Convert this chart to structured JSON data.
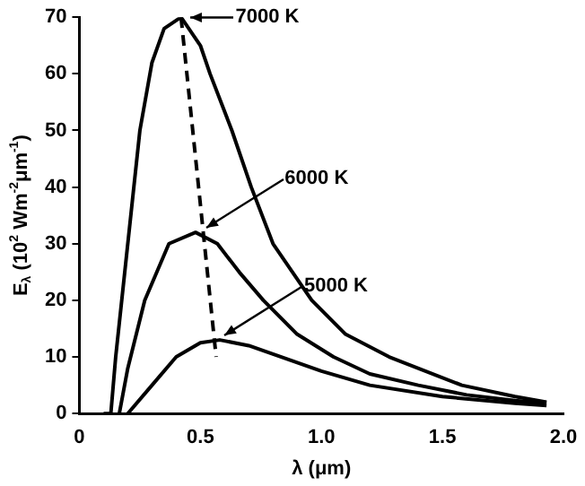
{
  "chart_data": {
    "type": "line",
    "xlabel": "λ (μm)",
    "ylabel": "E$_{λ}$ (10$^{2}$ Wm$^{-2}$μm$^{-1}$)",
    "series": [
      {
        "color": "#000000",
        "x": [
          0.1,
          0.13,
          0.15,
          0.2,
          0.25,
          0.3,
          0.35,
          0.42,
          0.5,
          0.54,
          0.63,
          0.71,
          0.8,
          0.96,
          1.1,
          1.28,
          1.58,
          1.8,
          1.93
        ],
        "values": [
          0,
          0,
          10,
          30,
          50,
          62,
          68,
          70,
          65,
          60,
          50,
          40,
          30,
          20,
          14,
          10,
          5,
          3,
          2
        ]
      },
      {
        "color": "#000000",
        "x": [
          0.165,
          0.2,
          0.27,
          0.37,
          0.48,
          0.57,
          0.66,
          0.76,
          0.9,
          1.05,
          1.2,
          1.4,
          1.6,
          1.8,
          1.93
        ],
        "values": [
          0,
          8,
          20,
          30,
          32,
          30,
          25,
          20,
          14,
          10,
          7,
          5,
          3.3,
          2.3,
          1.8
        ]
      },
      {
        "color": "#000000",
        "x": [
          0.2,
          0.3,
          0.4,
          0.5,
          0.58,
          0.7,
          0.8,
          1.0,
          1.2,
          1.5,
          1.8,
          1.93
        ],
        "values": [
          0,
          5,
          10,
          12.5,
          13,
          12,
          10.5,
          7.5,
          5,
          3,
          1.8,
          1.4
        ]
      },
      {
        "color": "#000000",
        "line_style": "dashed",
        "x": [
          0.42,
          0.565
        ],
        "values": [
          70,
          10
        ]
      }
    ],
    "xlim": [
      0,
      2
    ],
    "xticks": [
      0,
      0.5,
      {
        "value": 1,
        "label": "1.0"
      },
      1.5,
      {
        "value": 2,
        "label": "2.0"
      }
    ],
    "ylim": [
      0,
      70
    ],
    "yticks": [
      0,
      10,
      20,
      30,
      40,
      50,
      60,
      70
    ],
    "marker": "none",
    "line_style": "solid",
    "grid": false,
    "legend": false,
    "annotations": [
      {
        "text": "7000 K",
        "x": 0.43,
        "y": 70
      },
      {
        "text": "6000 K",
        "x": 0.5,
        "y": 32
      },
      {
        "text": "5000 K",
        "x": 0.58,
        "y": 13
      }
    ]
  }
}
